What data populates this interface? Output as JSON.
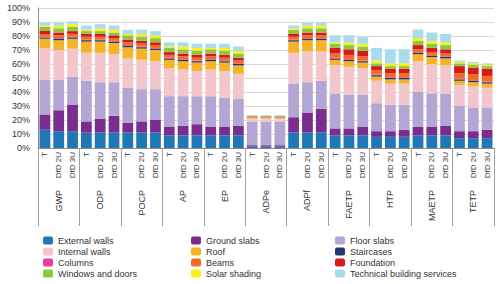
{
  "chart_data": {
    "type": "bar",
    "stacked": true,
    "grid": true,
    "legend": "bottom",
    "categories": [
      "T",
      "DfD 2U",
      "DfD 3U",
      "T",
      "DfD 2U",
      "DfD 3U",
      "T",
      "DfD 2U",
      "DfD 3U",
      "T",
      "DfD 2U",
      "DfD 3U",
      "T",
      "DfD 2U",
      "DfD 3U",
      "T",
      "DfD 2U",
      "DfD 3U",
      "T",
      "DfD 2U",
      "DfD 3U",
      "T",
      "DfD 2U",
      "DfD 3U",
      "T",
      "DfD 2U",
      "DfD 3U",
      "T",
      "DfD 2U",
      "DfD 3U",
      "T",
      "DfD 2U",
      "DfD 3U"
    ],
    "groups": [
      "GWP",
      "ODP",
      "POCP",
      "AP",
      "EP",
      "ADPe",
      "ADPf",
      "FAETP",
      "HTP",
      "MAETP",
      "TETP"
    ],
    "ylim": [
      0,
      100
    ],
    "yticks": [
      {
        "value": 0,
        "label": "0%"
      },
      {
        "value": 10,
        "label": "10%"
      },
      {
        "value": 20,
        "label": "20%"
      },
      {
        "value": 30,
        "label": "30%"
      },
      {
        "value": 40,
        "label": "40%"
      },
      {
        "value": 50,
        "label": "50%"
      },
      {
        "value": 60,
        "label": "60%"
      },
      {
        "value": 70,
        "label": "70%"
      },
      {
        "value": 80,
        "label": "80%"
      },
      {
        "value": 90,
        "label": "90%"
      },
      {
        "value": 100,
        "label": "100%"
      }
    ],
    "series": [
      {
        "name": "External walls",
        "color": "#1f77b8",
        "values": [
          13,
          12,
          12,
          11,
          11,
          11,
          11,
          11,
          11,
          9,
          9,
          9,
          9,
          9,
          9,
          1,
          1,
          1,
          11,
          11,
          11,
          9,
          9,
          9,
          8,
          8,
          8,
          9,
          9,
          9,
          7,
          7,
          7
        ]
      },
      {
        "name": "Ground slabs",
        "color": "#7b2d8e",
        "values": [
          11,
          15,
          19,
          8,
          10,
          12,
          7,
          8,
          9,
          6,
          7,
          8,
          6,
          6,
          7,
          1,
          1,
          1,
          11,
          14,
          17,
          5,
          5,
          6,
          4,
          4,
          5,
          6,
          6,
          7,
          5,
          5,
          6
        ]
      },
      {
        "name": "Floor slabs",
        "color": "#b3a5d4",
        "values": [
          25,
          22,
          20,
          29,
          26,
          24,
          25,
          23,
          22,
          22,
          21,
          20,
          22,
          21,
          19,
          17,
          17,
          17,
          24,
          22,
          20,
          25,
          24,
          23,
          20,
          19,
          18,
          25,
          24,
          23,
          18,
          17,
          16
        ]
      },
      {
        "name": "Internal walls",
        "color": "#f2c6cb",
        "values": [
          22,
          21,
          20,
          20,
          21,
          20,
          21,
          21,
          20,
          20,
          19,
          18,
          19,
          19,
          18,
          2,
          2,
          2,
          22,
          22,
          21,
          20,
          20,
          19,
          16,
          15,
          15,
          22,
          21,
          20,
          15,
          15,
          14
        ]
      },
      {
        "name": "Roof",
        "color": "#f6b326",
        "values": [
          7,
          7,
          7,
          8,
          8,
          8,
          8,
          8,
          8,
          6,
          6,
          6,
          6,
          6,
          6,
          0.5,
          0.5,
          0.5,
          8,
          8,
          8,
          4,
          4,
          4,
          3,
          3,
          3,
          5,
          5,
          5,
          3,
          3,
          3
        ]
      },
      {
        "name": "Staircases",
        "color": "#1f3a6b",
        "values": [
          1,
          1,
          1,
          1,
          1,
          1,
          1,
          1,
          1,
          1,
          1,
          1,
          1,
          1,
          1,
          0.2,
          0.2,
          0.2,
          1,
          1,
          1,
          1,
          1,
          1,
          1,
          1,
          1,
          1,
          1,
          1,
          1,
          1,
          1
        ]
      },
      {
        "name": "Columns",
        "color": "#e8409a",
        "values": [
          0.5,
          0.5,
          0.5,
          0.5,
          0.5,
          0.5,
          0.5,
          0.5,
          0.5,
          0.5,
          0.5,
          0.5,
          0.5,
          0.5,
          0.5,
          0.2,
          0.2,
          0.2,
          0.5,
          0.5,
          0.5,
          0.5,
          0.5,
          0.5,
          0.5,
          0.5,
          0.5,
          0.5,
          0.5,
          0.5,
          0.5,
          0.5,
          0.5
        ]
      },
      {
        "name": "Beams",
        "color": "#f26b22",
        "values": [
          2,
          2,
          2,
          2,
          2,
          2,
          2,
          2,
          2,
          2,
          2,
          2,
          2,
          2,
          2,
          0.3,
          0.3,
          0.3,
          2,
          2,
          2,
          3,
          3,
          3,
          3,
          3,
          3,
          2,
          2,
          2,
          4,
          4,
          4
        ]
      },
      {
        "name": "Foundation",
        "color": "#d7191c",
        "values": [
          2,
          2,
          2,
          2,
          2,
          2,
          2,
          2,
          2,
          2,
          2,
          2,
          2,
          2,
          2,
          0.3,
          0.3,
          0.3,
          2,
          2,
          2,
          4,
          4,
          4,
          3,
          3,
          3,
          3,
          3,
          3,
          5,
          5,
          5
        ]
      },
      {
        "name": "Windows and doors",
        "color": "#8dc63f",
        "values": [
          3,
          3,
          3,
          2,
          2,
          2,
          3,
          3,
          3,
          3,
          3,
          3,
          3,
          3,
          3,
          0.5,
          0.5,
          0.5,
          3,
          3,
          3,
          3,
          3,
          3,
          2,
          2,
          2,
          3,
          3,
          3,
          2,
          2,
          2
        ]
      },
      {
        "name": "Solar shading",
        "color": "#f5f01e",
        "values": [
          1,
          2,
          2,
          1,
          2,
          2,
          1,
          2,
          2,
          1,
          2,
          2,
          1,
          2,
          2,
          0.2,
          0.2,
          0.2,
          1,
          2,
          2,
          1,
          2,
          2,
          2,
          2,
          2,
          2,
          2,
          2,
          1,
          1,
          1
        ]
      },
      {
        "name": "Technical building services",
        "color": "#a8dbee",
        "values": [
          2,
          2,
          2,
          3,
          3,
          3,
          3,
          3,
          3,
          3,
          3,
          3,
          3,
          3,
          3,
          0.5,
          0.5,
          0.5,
          2,
          2,
          2,
          5,
          5,
          5,
          9,
          10,
          10,
          6,
          6,
          6,
          1,
          1,
          1
        ]
      }
    ]
  }
}
